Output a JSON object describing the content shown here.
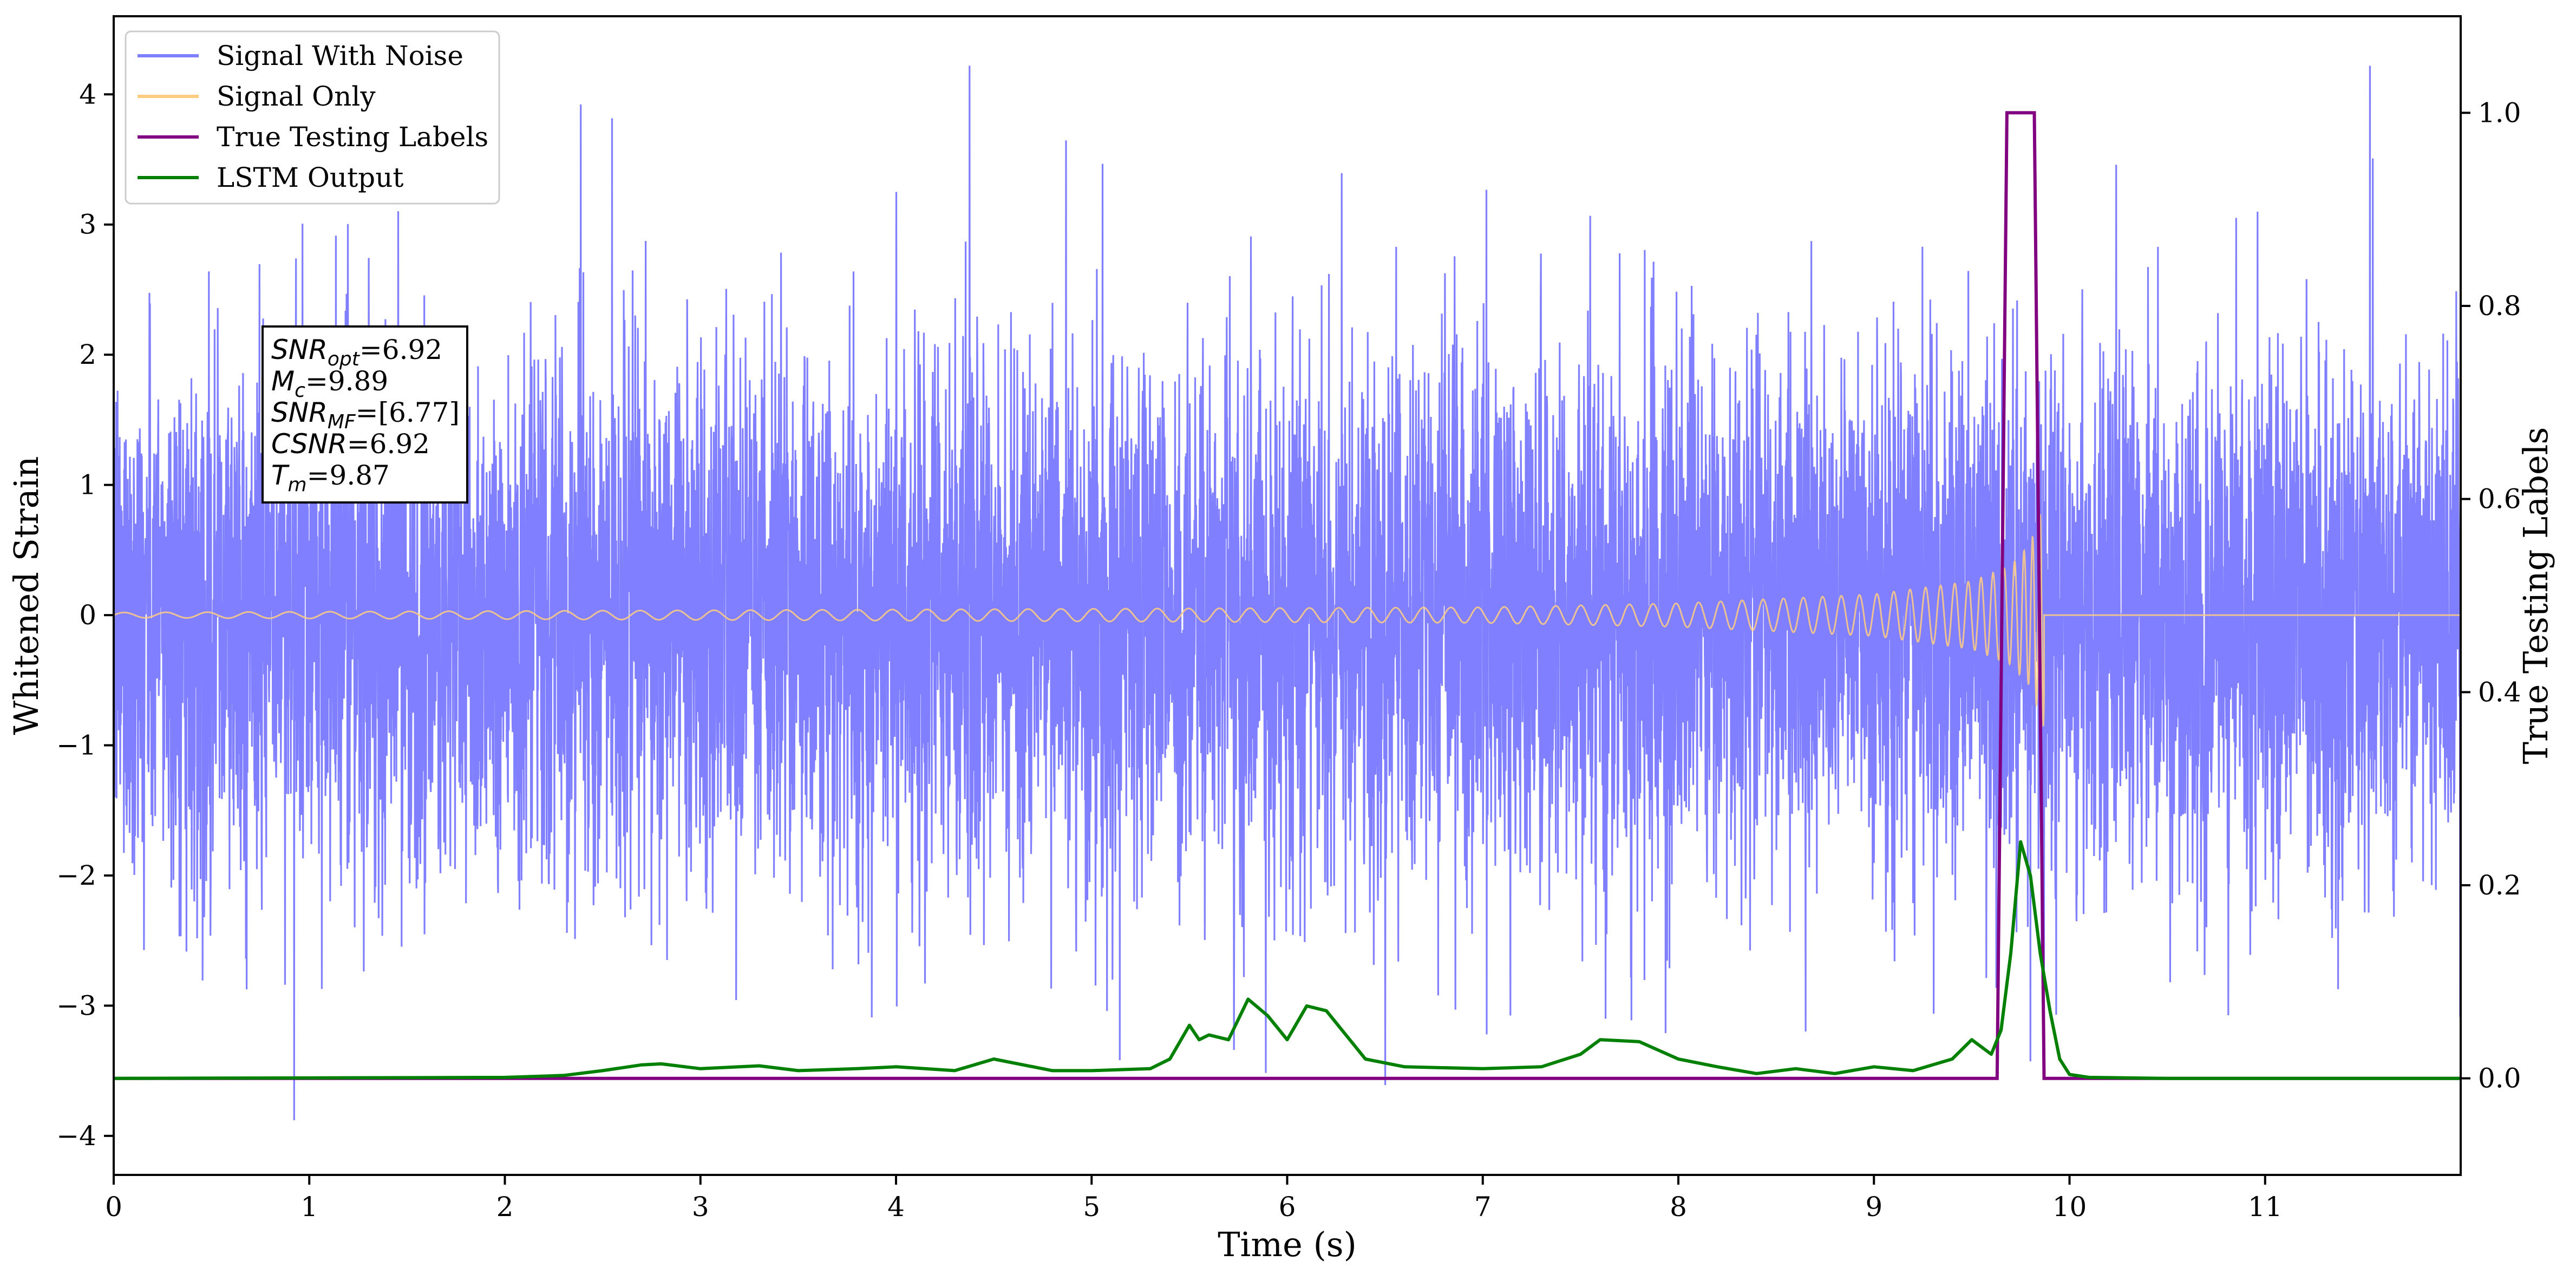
{
  "chart_data": {
    "type": "line",
    "xlabel": "Time (s)",
    "ylabel": "Whitened Strain",
    "y2label": "True Testing Labels",
    "xlim": [
      0,
      12
    ],
    "ylim": [
      -4.3,
      4.6
    ],
    "y2lim": [
      -0.1,
      1.1
    ],
    "xticks": [
      0,
      1,
      2,
      3,
      4,
      5,
      6,
      7,
      8,
      9,
      10,
      11
    ],
    "xtick_labels": [
      "0",
      "1",
      "2",
      "3",
      "4",
      "5",
      "6",
      "7",
      "8",
      "9",
      "10",
      "11"
    ],
    "yticks": [
      -4,
      -3,
      -2,
      -1,
      0,
      1,
      2,
      3,
      4
    ],
    "ytick_labels": [
      "−4",
      "−3",
      "−2",
      "−1",
      "0",
      "1",
      "2",
      "3",
      "4"
    ],
    "y2ticks": [
      0.0,
      0.2,
      0.4,
      0.6,
      0.8,
      1.0
    ],
    "y2tick_labels": [
      "0.0",
      "0.2",
      "0.4",
      "0.6",
      "0.8",
      "1.0"
    ],
    "grid": false,
    "legend_position": "top-left",
    "series": [
      {
        "name": "Signal With Noise",
        "axis": "left",
        "color": "#7f7fff",
        "kind": "noise",
        "x_range": [
          0,
          12
        ],
        "typical_amplitude": 1.0,
        "max": 4.22,
        "min": -3.88
      },
      {
        "name": "Signal Only",
        "axis": "left",
        "color": "#ffcc80",
        "kind": "chirp",
        "x_start": 0,
        "merger_time": 9.87,
        "x_end": 12,
        "envelope": [
          [
            0,
            0.02
          ],
          [
            7,
            0.06
          ],
          [
            8,
            0.09
          ],
          [
            9,
            0.16
          ],
          [
            9.5,
            0.26
          ],
          [
            9.7,
            0.38
          ],
          [
            9.8,
            0.55
          ],
          [
            9.87,
            0.87
          ]
        ]
      },
      {
        "name": "True Testing Labels",
        "axis": "right",
        "color": "#800080",
        "x": [
          0,
          9.63,
          9.68,
          9.82,
          9.87,
          12
        ],
        "y": [
          0,
          0,
          1,
          1,
          0,
          0
        ]
      },
      {
        "name": "LSTM Output",
        "axis": "right",
        "color": "#008000",
        "x": [
          0,
          2.0,
          2.3,
          2.5,
          2.7,
          2.8,
          3.0,
          3.2,
          3.3,
          3.5,
          3.8,
          4.0,
          4.3,
          4.5,
          4.8,
          5.0,
          5.3,
          5.4,
          5.5,
          5.55,
          5.6,
          5.7,
          5.8,
          5.9,
          6.0,
          6.1,
          6.2,
          6.3,
          6.4,
          6.6,
          7.0,
          7.3,
          7.5,
          7.6,
          7.8,
          8.0,
          8.2,
          8.4,
          8.6,
          8.8,
          9.0,
          9.2,
          9.4,
          9.5,
          9.6,
          9.65,
          9.7,
          9.75,
          9.8,
          9.85,
          9.9,
          9.95,
          10.0,
          10.1,
          10.5,
          12
        ],
        "y": [
          0,
          0.001,
          0.003,
          0.008,
          0.014,
          0.015,
          0.01,
          0.012,
          0.013,
          0.008,
          0.01,
          0.012,
          0.008,
          0.02,
          0.008,
          0.008,
          0.01,
          0.02,
          0.055,
          0.04,
          0.045,
          0.04,
          0.082,
          0.065,
          0.04,
          0.075,
          0.07,
          0.045,
          0.02,
          0.012,
          0.01,
          0.012,
          0.025,
          0.04,
          0.038,
          0.02,
          0.012,
          0.005,
          0.01,
          0.005,
          0.012,
          0.008,
          0.02,
          0.04,
          0.025,
          0.05,
          0.13,
          0.245,
          0.21,
          0.13,
          0.07,
          0.02,
          0.004,
          0.001,
          0,
          0
        ]
      }
    ],
    "annotation": {
      "lines": [
        {
          "label": "SNR",
          "sub": "opt",
          "value": "=6.92"
        },
        {
          "label": "M",
          "sub": "c",
          "value": "=9.89"
        },
        {
          "label": "SNR",
          "sub": "MF",
          "value": "=[6.77]"
        },
        {
          "label": "CSNR",
          "sub": "",
          "value": "=6.92"
        },
        {
          "label": "T",
          "sub": "m",
          "value": "=9.87"
        }
      ]
    }
  },
  "colors": {
    "noise": "#7f7fff",
    "signal": "#ffcc80",
    "labels": "#800080",
    "lstm": "#008000"
  }
}
